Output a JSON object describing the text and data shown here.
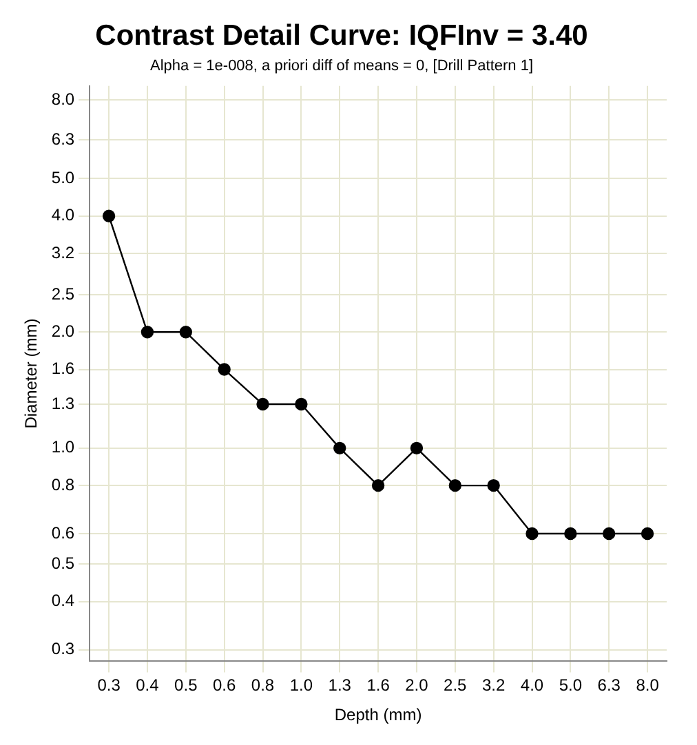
{
  "chart_data": {
    "type": "line",
    "title": "Contrast Detail Curve: IQFInv = 3.40",
    "subtitle": "Alpha = 1e-008, a priori diff of means = 0, [Drill Pattern 1]",
    "xlabel": "Depth (mm)",
    "ylabel": "Diameter (mm)",
    "categories": [
      "0.3",
      "0.4",
      "0.5",
      "0.6",
      "0.8",
      "1.0",
      "1.3",
      "1.6",
      "2.0",
      "2.5",
      "3.2",
      "4.0",
      "5.0",
      "6.3",
      "8.0"
    ],
    "series": [
      {
        "color": "#000000",
        "values": [
          4.0,
          2.0,
          2.0,
          1.6,
          1.3,
          1.3,
          1.0,
          0.8,
          1.0,
          0.8,
          0.8,
          0.6,
          0.6,
          0.6,
          0.6
        ]
      }
    ],
    "log": "y",
    "ylim": [
      0.28,
      8.7
    ],
    "yticks": [
      {
        "value": 0.3,
        "label": "0.3"
      },
      {
        "value": 0.4,
        "label": "0.4"
      },
      {
        "value": 0.5,
        "label": "0.5"
      },
      {
        "value": 0.6,
        "label": "0.6"
      },
      {
        "value": 0.8,
        "label": "0.8"
      },
      {
        "value": 1,
        "label": "1.0"
      },
      {
        "value": 1.3,
        "label": "1.3"
      },
      {
        "value": 1.6,
        "label": "1.6"
      },
      {
        "value": 2,
        "label": "2.0"
      },
      {
        "value": 2.5,
        "label": "2.5"
      },
      {
        "value": 3.2,
        "label": "3.2"
      },
      {
        "value": 4,
        "label": "4.0"
      },
      {
        "value": 5,
        "label": "5.0"
      },
      {
        "value": 6.3,
        "label": "6.3"
      },
      {
        "value": 8,
        "label": "8.0"
      }
    ],
    "grid": true,
    "legend": false,
    "marker": "circle",
    "line_style": "solid"
  }
}
